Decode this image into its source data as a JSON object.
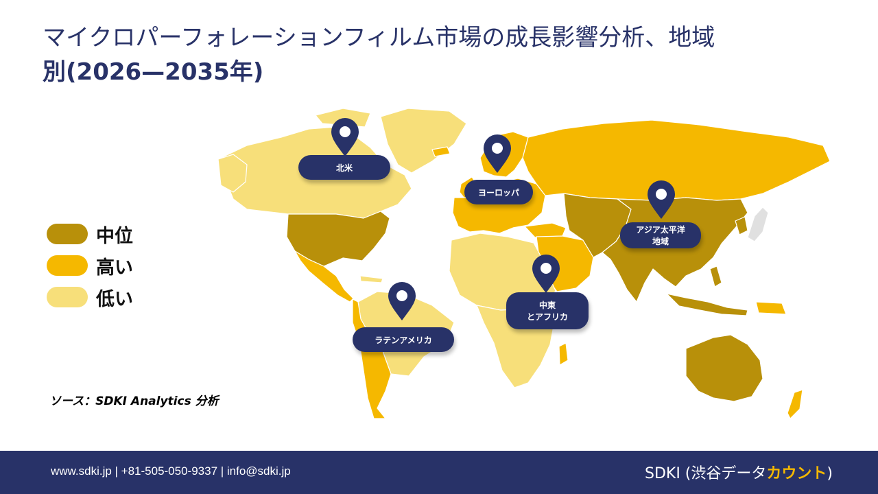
{
  "title": {
    "line1": "マイクロパーフォレーションフィルム市場の成長影響分析、地域",
    "line2": "別(2026—2035年)"
  },
  "legend": [
    {
      "label": "中位",
      "color": "#b8900a"
    },
    {
      "label": "高い",
      "color": "#f5b800"
    },
    {
      "label": "低い",
      "color": "#f7df7a"
    }
  ],
  "regions": {
    "north_america": {
      "label": "北米"
    },
    "europe": {
      "label": "ヨーロッパ"
    },
    "asia_pacific": {
      "line1": "アジア太平洋",
      "line2": "地域"
    },
    "middle_east_africa": {
      "line1": "中東",
      "line2": "とアフリカ"
    },
    "latin_america": {
      "label": "ラテンアメリカ"
    }
  },
  "source": "ソース：SDKI Analytics 分析",
  "footer": {
    "contact": "www.sdki.jp | +81-505-050-9337 | info@sdki.jp",
    "brand_prefix": "SDKI (渋谷データ",
    "brand_accent": "カウント",
    "brand_suffix": ")"
  },
  "colors": {
    "navy": "#283268",
    "medium": "#b8900a",
    "high": "#f5b800",
    "low": "#f7df7a",
    "no_data": "#e0e0e0"
  }
}
